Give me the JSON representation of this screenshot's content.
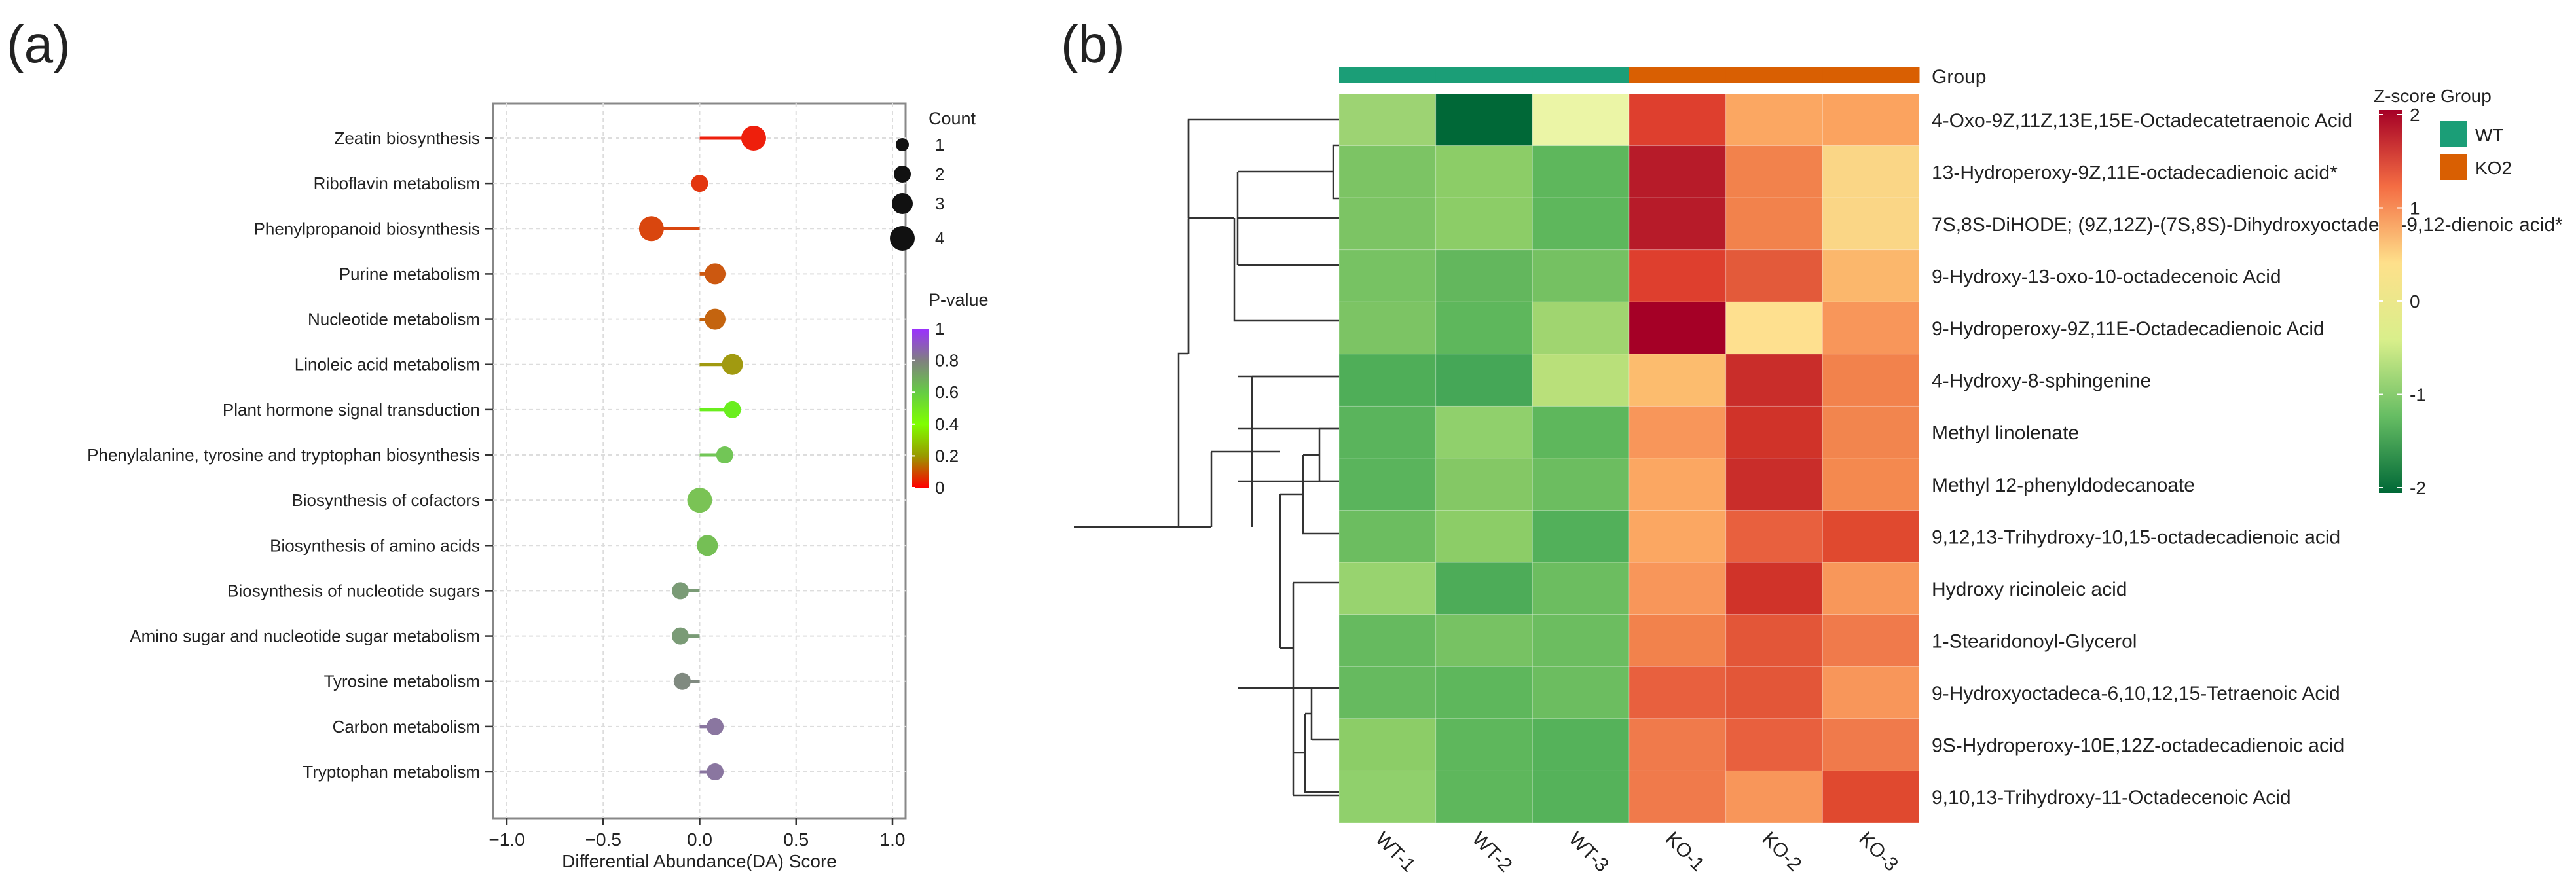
{
  "panel_labels": {
    "a": "(a)",
    "b": "(b)"
  },
  "chart_data": [
    {
      "type": "scatter",
      "subtype": "lollipop",
      "xlabel": "Differential Abundance(DA) Score",
      "xlim": [
        -1.1,
        1.1
      ],
      "xticks": [
        -1.0,
        -0.5,
        0.0,
        0.5,
        1.0
      ],
      "xtick_labels": [
        "−1.0",
        "−0.5",
        "0.0",
        "0.5",
        "1.0"
      ],
      "grid": true,
      "categories": [
        "Zeatin biosynthesis",
        "Riboflavin metabolism",
        "Phenylpropanoid biosynthesis",
        "Purine metabolism",
        "Nucleotide metabolism",
        "Linoleic acid metabolism",
        "Plant hormone signal transduction",
        "Phenylalanine, tyrosine and tryptophan biosynthesis",
        "Biosynthesis of cofactors",
        "Biosynthesis of amino acids",
        "Biosynthesis of nucleotide sugars",
        "Amino sugar and nucleotide sugar metabolism",
        "Tyrosine metabolism",
        "Carbon metabolism",
        "Tryptophan metabolism"
      ],
      "da_score": [
        0.28,
        0.0,
        -0.25,
        0.08,
        0.08,
        0.17,
        0.17,
        0.13,
        0.0,
        0.04,
        -0.1,
        -0.1,
        -0.09,
        0.08,
        0.08
      ],
      "count": [
        4,
        2,
        4,
        3,
        3,
        3,
        2,
        2,
        4,
        3,
        2,
        2,
        2,
        2,
        2
      ],
      "p_value": [
        0.01,
        0.05,
        0.08,
        0.12,
        0.14,
        0.25,
        0.45,
        0.55,
        0.58,
        0.58,
        0.68,
        0.68,
        0.75,
        0.9,
        0.9
      ],
      "point_colors": [
        "#ee1f0c",
        "#e3360f",
        "#d9460e",
        "#cc5810",
        "#c4640f",
        "#a19a10",
        "#6aee1e",
        "#72c656",
        "#7ac355",
        "#75bf55",
        "#7a9b76",
        "#7a9b76",
        "#808a80",
        "#8a76a0",
        "#8a76a0"
      ],
      "legend_count": {
        "title": "Count",
        "labels": [
          "1",
          "2",
          "3",
          "4"
        ]
      },
      "legend_pvalue": {
        "title": "P-value",
        "labels": [
          "1",
          "0.8",
          "0.6",
          "0.4",
          "0.2",
          "0"
        ],
        "colors": [
          "#9b30ff",
          "#808080",
          "#66cc44",
          "#7fff00",
          "#999900",
          "#ff0000"
        ]
      }
    },
    {
      "type": "heatmap",
      "columns": [
        "WT-1",
        "WT-2",
        "WT-3",
        "KO-1",
        "KO-2",
        "KO-3"
      ],
      "column_groups": [
        "WT",
        "WT",
        "WT",
        "KO2",
        "KO2",
        "KO2"
      ],
      "group_annotation_label": "Group",
      "rows": [
        "4-Oxo-9Z,11Z,13E,15E-Octadecatetraenoic Acid",
        "13-Hydroperoxy-9Z,11E-octadecadienoic acid*",
        "7S,8S-DiHODE; (9Z,12Z)-(7S,8S)-Dihydroxyoctadeca-9,12-dienoic acid*",
        "9-Hydroxy-13-oxo-10-octadecenoic Acid",
        "9-Hydroperoxy-9Z,11E-Octadecadienoic Acid",
        "4-Hydroxy-8-sphingenine",
        "Methyl linolenate",
        "Methyl 12-phenyldodecanoate",
        "9,12,13-Trihydroxy-10,15-octadecadienoic acid",
        "Hydroxy ricinoleic acid",
        "1-Stearidonoyl-Glycerol",
        "9-Hydroxyoctadeca-6,10,12,15-Tetraenoic Acid",
        "9S-Hydroperoxy-10E,12Z-octadecadienoic acid",
        "9,10,13-Trihydroxy-11-Octadecenoic Acid"
      ],
      "cell_colors": [
        [
          "#9dd373",
          "#006837",
          "#ebf5a6",
          "#de3f2e",
          "#fba762",
          "#fba35f"
        ],
        [
          "#7cc464",
          "#8ccd67",
          "#5eb75c",
          "#b71b29",
          "#f2824c",
          "#fad686"
        ],
        [
          "#7cc464",
          "#8ccd67",
          "#5eb75c",
          "#b71b29",
          "#f2824c",
          "#fad686"
        ],
        [
          "#77c263",
          "#63b75d",
          "#75c162",
          "#de3f2e",
          "#e35a3a",
          "#fbb76c"
        ],
        [
          "#7cc464",
          "#5eb75c",
          "#a0d570",
          "#a50026",
          "#fee08f",
          "#f8965a"
        ],
        [
          "#4fae58",
          "#45a757",
          "#b9e07a",
          "#fcbc6e",
          "#c92d2a",
          "#f2824c"
        ],
        [
          "#5ab45c",
          "#90d06c",
          "#5eb75c",
          "#f8965a",
          "#d03329",
          "#f2854e"
        ],
        [
          "#5ab45c",
          "#84c865",
          "#6cbd60",
          "#fba762",
          "#c92d2a",
          "#f4894f"
        ],
        [
          "#6cbd60",
          "#8ccd67",
          "#52b05a",
          "#fba762",
          "#e8603e",
          "#e0492f"
        ],
        [
          "#98d36f",
          "#4dac58",
          "#6cbd60",
          "#f8965a",
          "#d03329",
          "#f8975a"
        ],
        [
          "#66ba5f",
          "#77c263",
          "#6cbd60",
          "#f2824c",
          "#e35638",
          "#f07a4b"
        ],
        [
          "#66ba5f",
          "#5eb75c",
          "#6cbd60",
          "#e8603e",
          "#e35638",
          "#f8965a"
        ],
        [
          "#8ccd67",
          "#5eb75c",
          "#55b25a",
          "#f07a4b",
          "#e8603e",
          "#f07a4b"
        ],
        [
          "#90d06c",
          "#5eb75c",
          "#55b25a",
          "#f07a4b",
          "#f8965a",
          "#e0492f"
        ]
      ],
      "legend_zscore": {
        "title": "Z-score",
        "ticks": [
          "2",
          "1",
          "0",
          "-1",
          "-2"
        ],
        "range": [
          -2,
          2
        ],
        "colors": [
          "#a50026",
          "#f46d43",
          "#fee08b",
          "#d9ef8b",
          "#66bd63",
          "#006837"
        ]
      },
      "legend_group": {
        "title": "Group",
        "items": [
          {
            "label": "WT",
            "color": "#1b9e77"
          },
          {
            "label": "KO2",
            "color": "#d95f02"
          }
        ]
      }
    }
  ]
}
